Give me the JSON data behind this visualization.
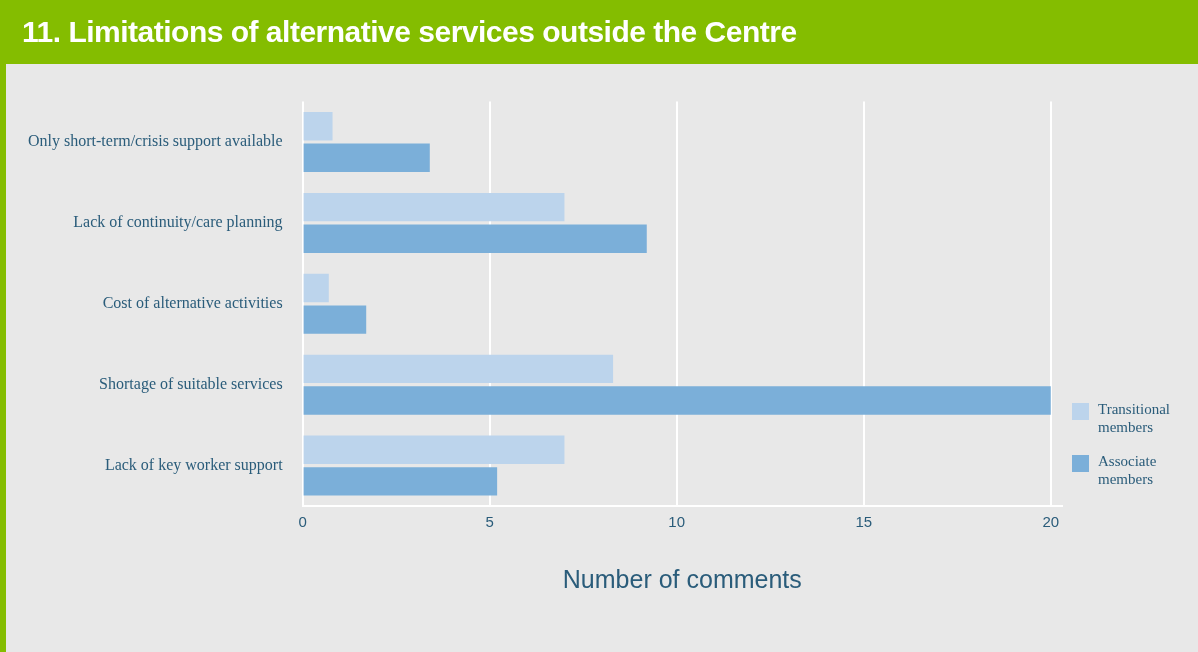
{
  "chart_data": {
    "type": "bar",
    "orientation": "horizontal",
    "title": "11. Limitations of alternative services outside the Centre",
    "xlabel": "Number of comments",
    "categories": [
      "Only short-term/crisis support available",
      "Lack of continuity/care planning",
      "Cost of alternative activities",
      "Shortage of suitable services",
      "Lack of key worker support"
    ],
    "series": [
      {
        "name": "Transitional members",
        "color": "#bcd4ec",
        "values": [
          0.8,
          7.0,
          0.7,
          8.3,
          7.0
        ]
      },
      {
        "name": "Associate members",
        "color": "#7bafd9",
        "values": [
          3.4,
          9.2,
          1.7,
          20,
          5.2
        ]
      }
    ],
    "xlim": [
      0,
      20.3
    ],
    "xticks": [
      0,
      5,
      10,
      15,
      20
    ],
    "grid": "x",
    "legend": "right"
  }
}
